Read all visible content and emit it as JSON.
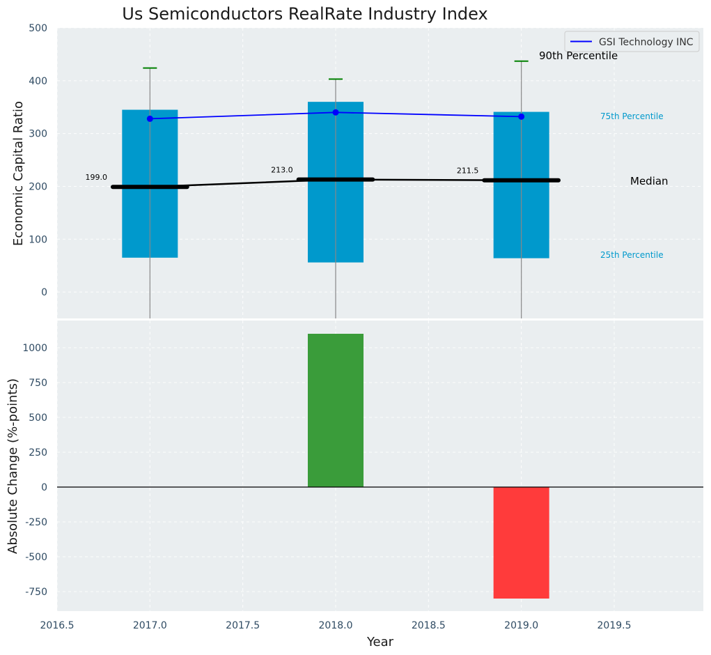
{
  "title": "Us Semiconductors RealRate Industry Index",
  "legend": {
    "label": "GSI Technology INC",
    "color": "#0000ff",
    "placement": "top-right"
  },
  "colors": {
    "panel_bg": "#eaeef0",
    "box": "#0099cc",
    "median": "#000000",
    "p90_cap": "#008000",
    "company_line": "#0000ff",
    "positive": "#3a9c3a",
    "negative": "#ff3b3b",
    "tick_text": "#2e4a62"
  },
  "chart_data": [
    {
      "type": "bar",
      "subtype": "box-percentile",
      "ylabel": "Economic Capital Ratio",
      "ylim": [
        -50,
        500
      ],
      "yticks": [
        0,
        100,
        200,
        300,
        400,
        500
      ],
      "grid": true,
      "x": [
        2017,
        2018,
        2019
      ],
      "p25": [
        65,
        56,
        64
      ],
      "p75": [
        345,
        360,
        341
      ],
      "p90": [
        424,
        403,
        437
      ],
      "median": [
        199.0,
        213.0,
        211.5
      ],
      "median_labels": [
        "199.0",
        "213.0",
        "211.5"
      ],
      "series": [
        {
          "name": "GSI Technology INC",
          "values": [
            328,
            340,
            332
          ]
        }
      ],
      "annotations": {
        "p90": "90th Percentile",
        "p75": "75th Percentile",
        "median": "Median",
        "p25": "25th Percentile"
      }
    },
    {
      "type": "bar",
      "xlabel": "Year",
      "ylabel": "Absolute Change (%-points)",
      "ylim": [
        -890,
        1195
      ],
      "yticks": [
        -750,
        -500,
        -250,
        0,
        250,
        500,
        750,
        1000
      ],
      "xlim": [
        2016.5,
        2019.98
      ],
      "xticks": [
        "2016.5",
        "2017.0",
        "2017.5",
        "2018.0",
        "2018.5",
        "2019.0",
        "2019.5"
      ],
      "grid": true,
      "x": [
        2018,
        2019
      ],
      "values": [
        1100,
        -800
      ]
    }
  ]
}
